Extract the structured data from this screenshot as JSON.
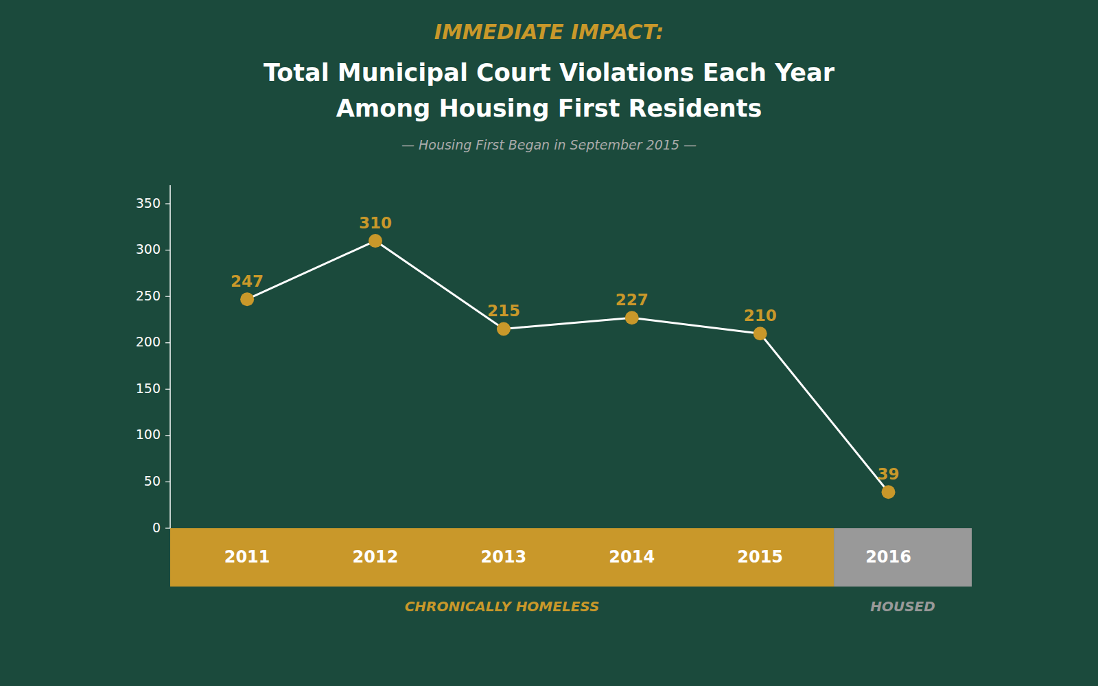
{
  "chart_data": {
    "type": "line",
    "title": [
      "IMMEDIATE IMPACT:",
      "Total Municipal Court Violations Each Year",
      "Among Housing First Residents"
    ],
    "subtitle": "— Housing First Began in September 2015 —",
    "x": [
      2011,
      2012,
      2013,
      2014,
      2015,
      2016
    ],
    "values": [
      247,
      310,
      215,
      227,
      210,
      39
    ],
    "color": "#c9982a",
    "marker": "circle",
    "data_labels": true,
    "grid": false,
    "xlim": [
      2010.4,
      2016.65
    ],
    "xticks": [
      2011,
      2012,
      2013,
      2014,
      2015,
      2016
    ],
    "ylim": [
      0,
      370
    ],
    "yticks": [
      0,
      50,
      100,
      150,
      200,
      250,
      300,
      350
    ],
    "annotations": [
      {
        "text": "CHRONICALLY HOMELESS",
        "x": [
          2010.4,
          2015.575
        ],
        "color": "#c9982a"
      },
      {
        "text": "HOUSED",
        "x": [
          2015.575,
          2016.65
        ],
        "color": "#999999"
      }
    ]
  }
}
